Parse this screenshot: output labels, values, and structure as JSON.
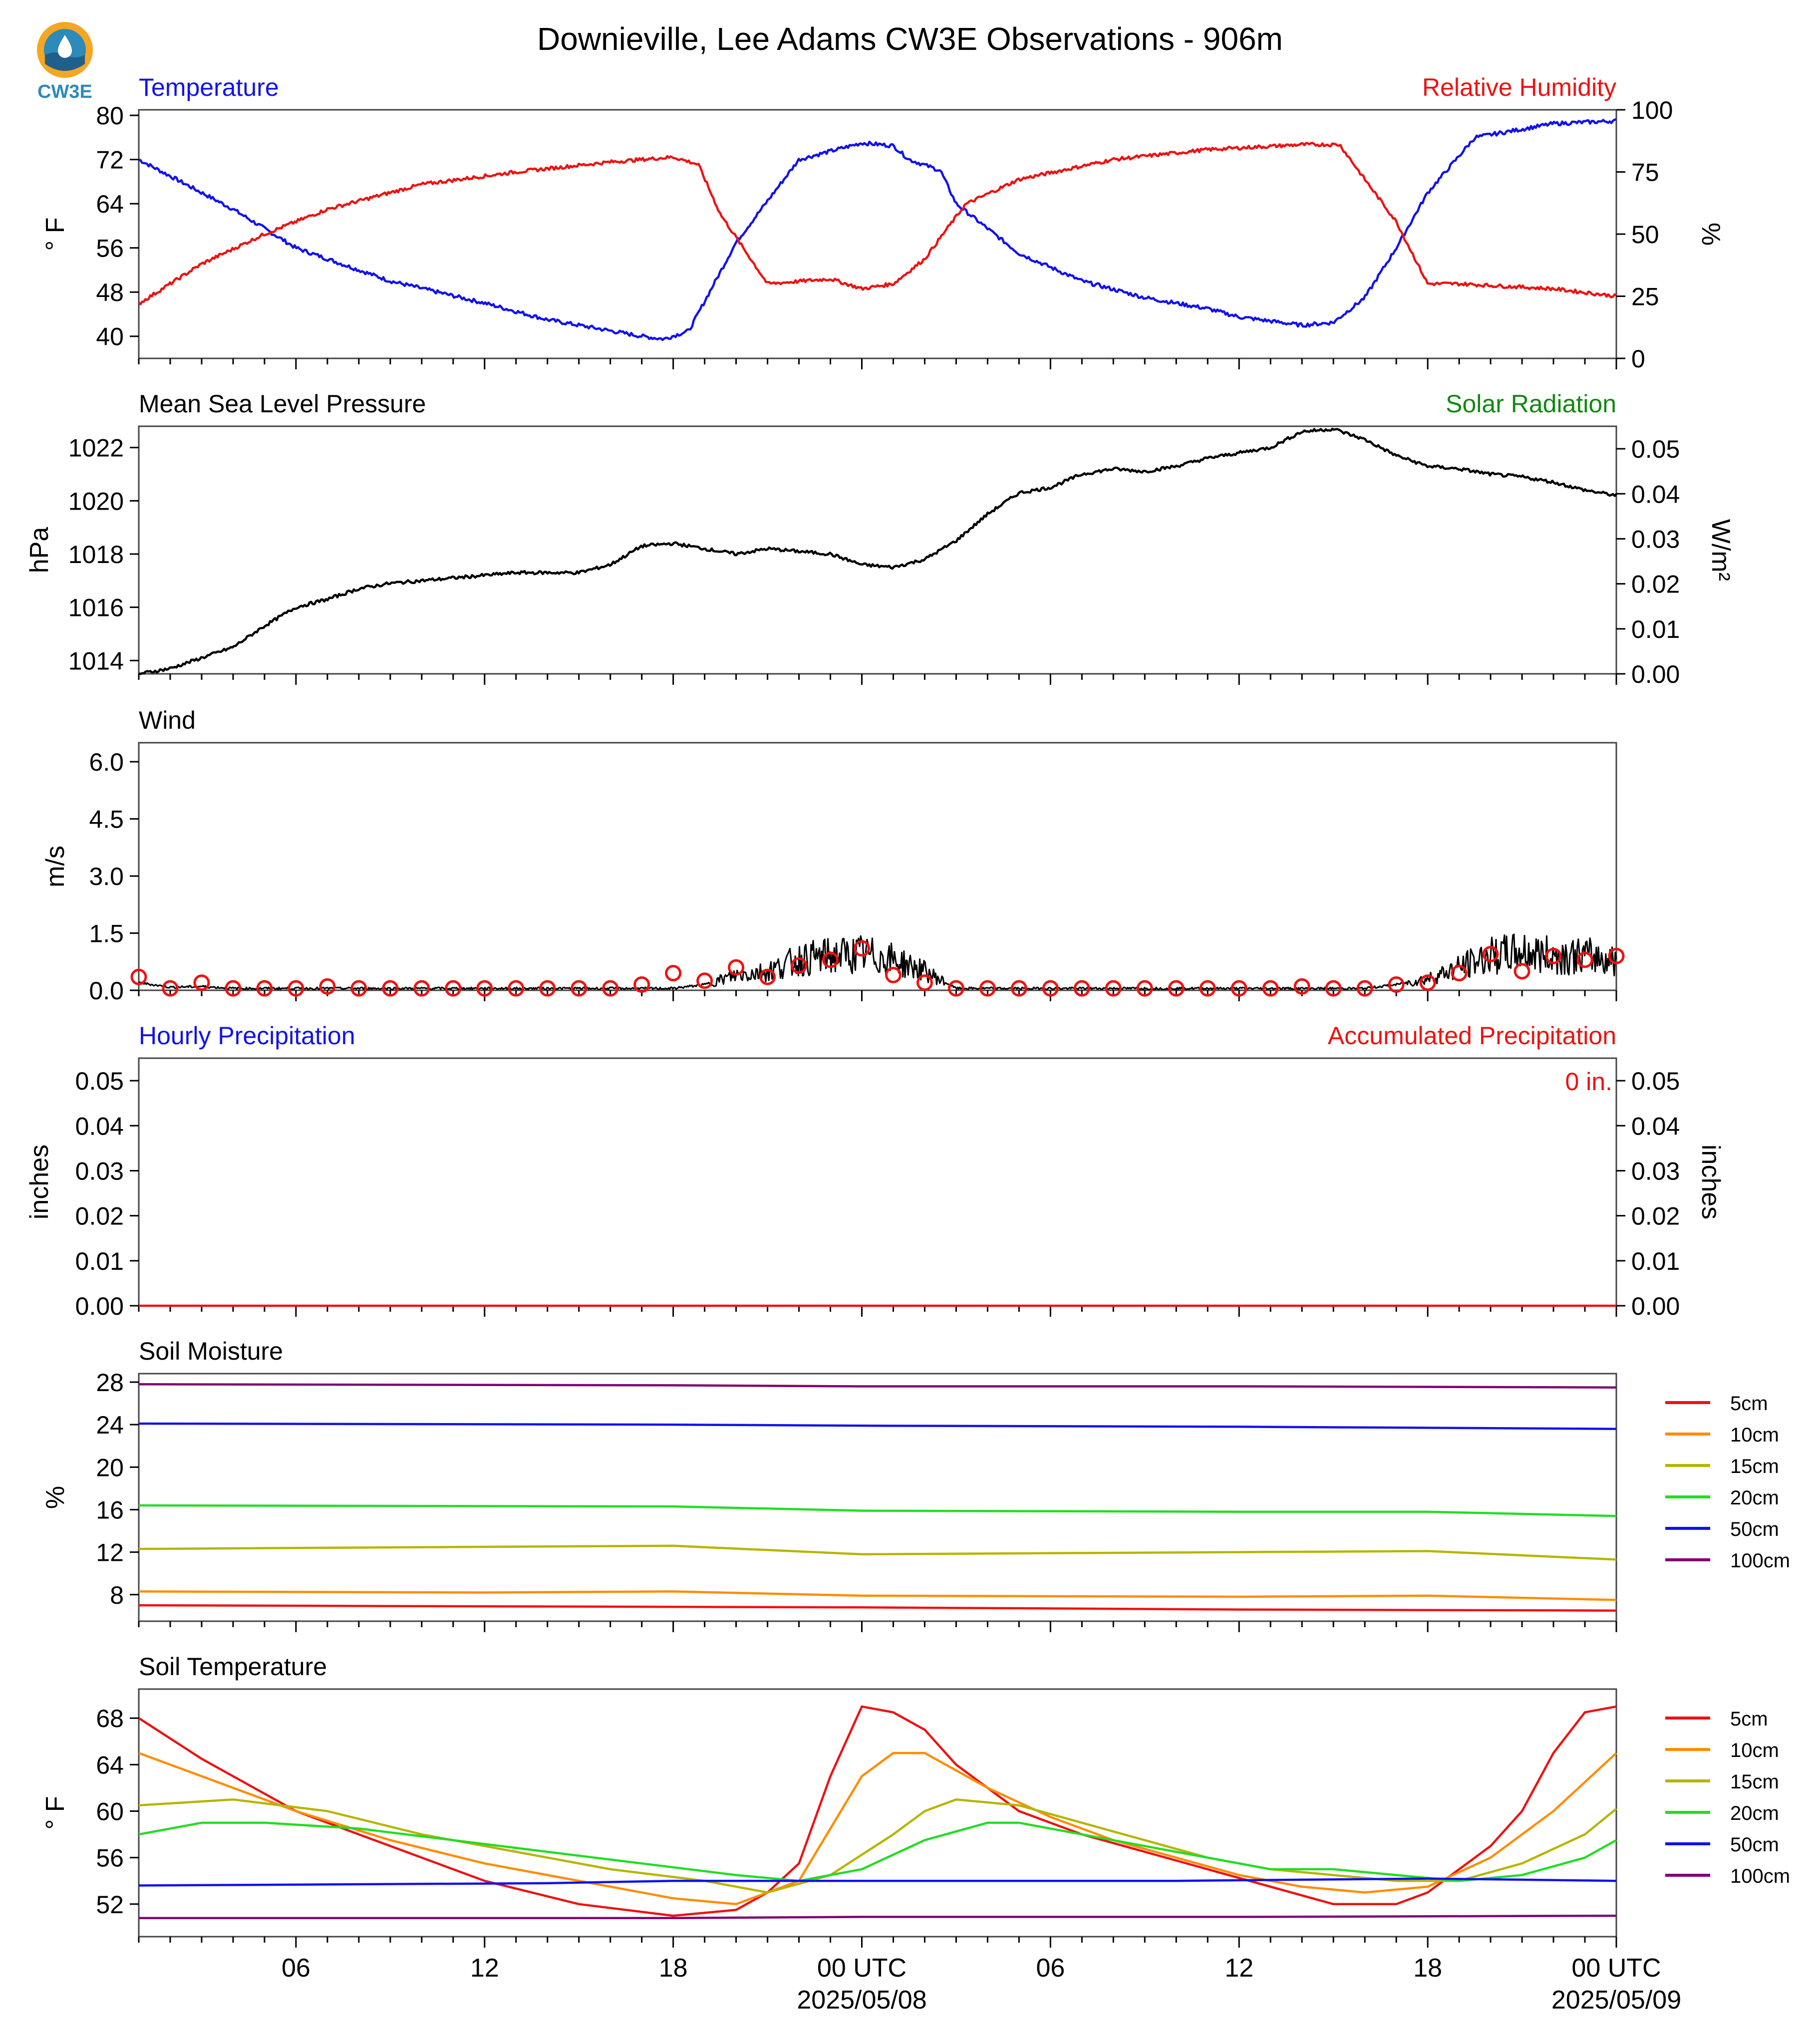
{
  "title": "Downieville, Lee Adams CW3E Observations - 906m",
  "logo": {
    "text": "CW3E",
    "colors": {
      "orange": "#f5a623",
      "blue": "#2e8ab8",
      "dark": "#1f5f8b"
    }
  },
  "time_axis": {
    "tick_labels": [
      "06",
      "12",
      "18",
      "00 UTC",
      "06",
      "12",
      "18",
      "00 UTC"
    ],
    "date_labels": [
      "2025/05/08",
      "2025/05/09"
    ],
    "range_hours": [
      -23,
      24
    ]
  },
  "colors": {
    "red": "#ee1111",
    "blue": "#1111ee",
    "green": "#118811",
    "black": "#000000"
  },
  "chart_data": [
    {
      "id": "temp_rh",
      "type": "line",
      "left_title": "Temperature",
      "right_title": "Relative Humidity",
      "ylabel": "° F",
      "ylabel_right": "%",
      "yticks": [
        "40",
        "48",
        "56",
        "64",
        "72",
        "80"
      ],
      "yticks_right": [
        "0",
        "25",
        "50",
        "75",
        "100"
      ],
      "ylim": [
        36,
        81
      ],
      "ylim_right": [
        0,
        100
      ],
      "series": [
        {
          "name": "Temperature",
          "color": "#1111ee",
          "axis": "left",
          "x": [
            -23,
            -20,
            -18,
            -15,
            -12,
            -10,
            -7,
            -6.3,
            -5.5,
            -4,
            -2,
            0,
            1,
            1.5,
            2.5,
            3,
            5,
            7,
            9,
            11,
            12,
            14,
            15,
            16,
            17,
            18,
            19.5,
            22,
            24
          ],
          "y": [
            72,
            63,
            56,
            50,
            46,
            43,
            40,
            39.5,
            41,
            57,
            72,
            75,
            74.5,
            72,
            70,
            64,
            55,
            50,
            47,
            45,
            43.5,
            42,
            42.5,
            47,
            56,
            66,
            76,
            78.5,
            79
          ]
        },
        {
          "name": "Relative Humidity",
          "color": "#ee1111",
          "axis": "right",
          "x": [
            -23,
            -21,
            -19,
            -17,
            -14,
            -11,
            -8,
            -6,
            -5.2,
            -4.5,
            -3,
            -1,
            0,
            1,
            2,
            2.7,
            3.3,
            5,
            8,
            11,
            14,
            15.2,
            16,
            17,
            18,
            19,
            22,
            24
          ],
          "y": [
            22,
            38,
            50,
            60,
            70,
            75,
            79,
            81,
            78,
            58,
            30,
            32,
            28,
            30,
            40,
            52,
            62,
            72,
            80,
            84,
            86,
            86,
            72,
            55,
            30,
            30,
            28,
            25
          ]
        }
      ]
    },
    {
      "id": "pressure",
      "type": "line",
      "left_title": "Mean Sea Level Pressure",
      "right_title": "Solar Radiation",
      "ylabel": "hPa",
      "ylabel_right": "W/m²",
      "yticks": [
        "1014",
        "1016",
        "1018",
        "1020",
        "1022"
      ],
      "yticks_right": [
        "0.00",
        "0.01",
        "0.02",
        "0.03",
        "0.04",
        "0.05"
      ],
      "ylim": [
        1013.5,
        1022.8
      ],
      "ylim_right": [
        0,
        0.055
      ],
      "series": [
        {
          "name": "Mean Sea Level Pressure",
          "color": "#000000",
          "axis": "left",
          "x": [
            -23,
            -22,
            -20,
            -19,
            -18,
            -17,
            -16,
            -15,
            -13,
            -11,
            -9,
            -8,
            -7,
            -6,
            -5,
            -4,
            -3,
            -2,
            -1,
            0,
            1,
            2,
            3,
            4,
            5,
            6,
            7,
            8,
            9,
            10,
            11,
            12,
            13,
            14,
            15,
            16,
            17,
            18,
            19,
            20,
            21,
            22,
            23,
            24
          ],
          "y": [
            1013.5,
            1013.7,
            1014.5,
            1015.3,
            1016,
            1016.3,
            1016.7,
            1016.9,
            1017.1,
            1017.3,
            1017.3,
            1017.6,
            1018.3,
            1018.4,
            1018.2,
            1018.0,
            1018.2,
            1018.1,
            1018.0,
            1017.6,
            1017.5,
            1017.8,
            1018.5,
            1019.5,
            1020.3,
            1020.5,
            1021.0,
            1021.2,
            1021.1,
            1021.3,
            1021.6,
            1021.8,
            1022.0,
            1022.6,
            1022.7,
            1022.3,
            1021.7,
            1021.3,
            1021.2,
            1021.0,
            1020.9,
            1020.7,
            1020.4,
            1020.2
          ]
        }
      ]
    },
    {
      "id": "wind",
      "type": "line",
      "left_title": "Wind",
      "ylabel": "m/s",
      "yticks": [
        "0.0",
        "1.5",
        "3.0",
        "4.5",
        "6.0"
      ],
      "ylim": [
        0,
        6.5
      ],
      "series": [
        {
          "name": "Wind",
          "color": "#000000",
          "axis": "left",
          "x": [
            -23,
            -22,
            -21,
            -20,
            -19,
            -18,
            -17,
            -16,
            -15,
            -14,
            -13,
            -12,
            -11,
            -10,
            -9,
            -8,
            -7,
            -6,
            -5,
            -4,
            -3,
            -2,
            -1,
            0,
            1,
            2,
            3,
            4,
            5,
            6,
            7,
            8,
            9,
            10,
            11,
            12,
            13,
            14,
            15,
            16,
            17,
            18,
            19,
            20,
            21,
            22,
            23,
            24
          ],
          "y": [
            0.2,
            0.08,
            0.1,
            0.05,
            0.05,
            0.05,
            0.05,
            0.05,
            0.05,
            0.05,
            0.05,
            0.05,
            0.05,
            0.05,
            0.05,
            0.05,
            0.05,
            0.05,
            0.15,
            0.4,
            0.5,
            0.8,
            0.9,
            0.95,
            0.8,
            0.5,
            0.05,
            0.05,
            0.05,
            0.05,
            0.05,
            0.05,
            0.05,
            0.05,
            0.05,
            0.05,
            0.05,
            0.05,
            0.05,
            0.05,
            0.15,
            0.3,
            0.6,
            0.9,
            1.0,
            0.9,
            0.9,
            0.8
          ]
        },
        {
          "name": "Gust",
          "color": "#ee1111",
          "axis": "left",
          "marker": "circle",
          "x": [
            -23,
            -22,
            -21,
            -20,
            -19,
            -18,
            -17,
            -16,
            -15,
            -14,
            -13,
            -12,
            -11,
            -10,
            -9,
            -8,
            -7,
            -6,
            -5,
            -4,
            -3,
            -2,
            -1,
            0,
            1,
            2,
            3,
            4,
            5,
            6,
            7,
            8,
            9,
            10,
            11,
            12,
            13,
            14,
            15,
            16,
            17,
            18,
            19,
            20,
            21,
            22,
            23,
            24
          ],
          "y": [
            0.35,
            0.05,
            0.2,
            0.05,
            0.05,
            0.05,
            0.1,
            0.05,
            0.05,
            0.05,
            0.05,
            0.05,
            0.05,
            0.05,
            0.05,
            0.05,
            0.15,
            0.45,
            0.25,
            0.6,
            0.35,
            0.65,
            0.8,
            1.1,
            0.4,
            0.2,
            0.05,
            0.05,
            0.05,
            0.05,
            0.05,
            0.05,
            0.05,
            0.05,
            0.05,
            0.05,
            0.05,
            0.1,
            0.05,
            0.05,
            0.15,
            0.2,
            0.45,
            0.95,
            0.5,
            0.9,
            0.8,
            0.9
          ]
        }
      ]
    },
    {
      "id": "precip",
      "type": "line",
      "left_title": "Hourly Precipitation",
      "right_title": "Accumulated Precipitation",
      "ylabel": "inches",
      "ylabel_right": "inches",
      "annotation": "0 in.",
      "yticks": [
        "0.00",
        "0.01",
        "0.02",
        "0.03",
        "0.04",
        "0.05"
      ],
      "yticks_right": [
        "0.00",
        "0.01",
        "0.02",
        "0.03",
        "0.04",
        "0.05"
      ],
      "ylim": [
        0,
        0.055
      ],
      "ylim_right": [
        0,
        0.055
      ],
      "series": [
        {
          "name": "Accumulated Precipitation",
          "color": "#ee1111",
          "axis": "right",
          "x": [
            -23,
            24
          ],
          "y": [
            0,
            0
          ]
        }
      ]
    },
    {
      "id": "soil_moisture",
      "type": "line",
      "left_title": "Soil Moisture",
      "ylabel": "%",
      "yticks": [
        "8",
        "12",
        "16",
        "20",
        "24",
        "28"
      ],
      "ylim": [
        5.5,
        28.8
      ],
      "legend": [
        "5cm",
        "10cm",
        "15cm",
        "20cm",
        "50cm",
        "100cm"
      ],
      "series": [
        {
          "name": "5cm",
          "color": "#ee1111",
          "x": [
            -23,
            -12,
            0,
            12,
            24
          ],
          "y": [
            7.0,
            6.9,
            6.8,
            6.6,
            6.5
          ]
        },
        {
          "name": "10cm",
          "color": "#ff8c00",
          "x": [
            -23,
            -12,
            -6,
            0,
            12,
            18,
            24
          ],
          "y": [
            8.3,
            8.2,
            8.3,
            7.9,
            7.8,
            7.9,
            7.5
          ]
        },
        {
          "name": "15cm",
          "color": "#b5b500",
          "x": [
            -23,
            -12,
            -6,
            0,
            12,
            18,
            24
          ],
          "y": [
            12.3,
            12.5,
            12.6,
            11.8,
            12.0,
            12.1,
            11.3
          ]
        },
        {
          "name": "20cm",
          "color": "#22dd22",
          "x": [
            -23,
            -6,
            0,
            12,
            18,
            24
          ],
          "y": [
            16.4,
            16.3,
            15.9,
            15.8,
            15.8,
            15.4
          ]
        },
        {
          "name": "50cm",
          "color": "#1111ee",
          "x": [
            -23,
            -6,
            0,
            12,
            24
          ],
          "y": [
            24.1,
            24.0,
            23.9,
            23.8,
            23.6
          ]
        },
        {
          "name": "100cm",
          "color": "#800070",
          "x": [
            -23,
            -6,
            0,
            12,
            24
          ],
          "y": [
            27.8,
            27.7,
            27.6,
            27.6,
            27.5
          ]
        }
      ]
    },
    {
      "id": "soil_temp",
      "type": "line",
      "left_title": "Soil Temperature",
      "ylabel": "° F",
      "yticks": [
        "52",
        "56",
        "60",
        "64",
        "68"
      ],
      "yticks_right": [],
      "ylim": [
        49.2,
        70.5
      ],
      "legend": [
        "5cm",
        "10cm",
        "15cm",
        "20cm",
        "50cm",
        "100cm"
      ],
      "series": [
        {
          "name": "5cm",
          "color": "#ee1111",
          "x": [
            -23,
            -21,
            -18,
            -15,
            -12,
            -9,
            -6,
            -4,
            -3,
            -2,
            -1,
            0,
            1,
            2,
            3,
            5,
            7,
            9,
            11,
            13,
            15,
            17,
            18,
            19,
            20,
            21,
            22,
            23,
            24
          ],
          "y": [
            68,
            64.5,
            60,
            57,
            54,
            52,
            51,
            51.5,
            53,
            55.5,
            63,
            69,
            68.5,
            67,
            64,
            60,
            58,
            56.5,
            55,
            53.5,
            52,
            52,
            53,
            55,
            57,
            60,
            65,
            68.5,
            69
          ]
        },
        {
          "name": "10cm",
          "color": "#ff8c00",
          "x": [
            -23,
            -21,
            -18,
            -15,
            -12,
            -9,
            -6,
            -4,
            -2,
            0,
            1,
            2,
            4,
            6,
            8,
            10,
            12,
            14,
            16,
            18,
            20,
            22,
            24
          ],
          "y": [
            65,
            63,
            60,
            57.5,
            55.5,
            54,
            52.5,
            52,
            54,
            63,
            65,
            65,
            62,
            59.5,
            57.5,
            56,
            54.5,
            53.5,
            53,
            53.5,
            56,
            60,
            65
          ]
        },
        {
          "name": "15cm",
          "color": "#b5b500",
          "x": [
            -23,
            -20,
            -17,
            -14,
            -11,
            -8,
            -5,
            -3,
            -1,
            1,
            2,
            3,
            5,
            7,
            9,
            11,
            13,
            15,
            17,
            19,
            21,
            23,
            24
          ],
          "y": [
            60.5,
            61.0,
            60,
            58,
            56.5,
            55,
            54,
            53,
            54.5,
            58,
            60,
            61,
            60.5,
            59,
            57.5,
            56,
            55,
            54.5,
            54,
            54,
            55.5,
            58,
            60.2
          ]
        },
        {
          "name": "20cm",
          "color": "#22dd22",
          "x": [
            -23,
            -21,
            -19,
            -16,
            -13,
            -10,
            -7,
            -4,
            -2,
            0,
            2,
            4,
            5,
            7,
            9,
            11,
            13,
            15,
            17,
            19,
            21,
            23,
            24
          ],
          "y": [
            58,
            59,
            59,
            58.5,
            57.5,
            56.5,
            55.5,
            54.5,
            54,
            55,
            57.5,
            59,
            59,
            58,
            57,
            56,
            55,
            55,
            54.5,
            54,
            54.5,
            56,
            57.5
          ]
        },
        {
          "name": "50cm",
          "color": "#1111ee",
          "x": [
            -23,
            -10,
            -6,
            0,
            4,
            10,
            18,
            24
          ],
          "y": [
            53.6,
            53.8,
            54,
            54,
            54,
            54,
            54.2,
            54
          ]
        },
        {
          "name": "100cm",
          "color": "#800070",
          "x": [
            -23,
            -6,
            0,
            12,
            24
          ],
          "y": [
            50.8,
            50.8,
            50.9,
            50.9,
            51.0
          ]
        }
      ]
    }
  ]
}
